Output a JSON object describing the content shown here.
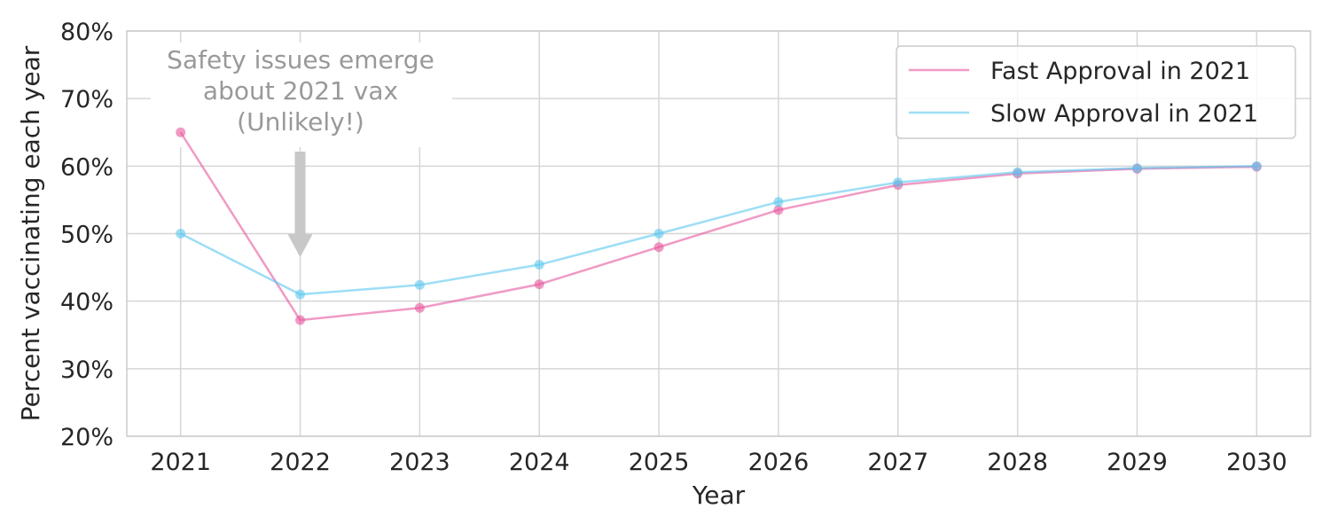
{
  "chart_data": {
    "type": "line",
    "title": "",
    "xlabel": "Year",
    "ylabel": "Percent vaccinating each year",
    "x": [
      2021,
      2022,
      2023,
      2024,
      2025,
      2026,
      2027,
      2028,
      2029,
      2030
    ],
    "x_tick_labels": [
      "2021",
      "2022",
      "2023",
      "2024",
      "2025",
      "2026",
      "2027",
      "2028",
      "2029",
      "2030"
    ],
    "ylim": [
      20,
      80
    ],
    "y_ticks": [
      20,
      30,
      40,
      50,
      60,
      70,
      80
    ],
    "y_tick_labels": [
      "20%",
      "30%",
      "40%",
      "50%",
      "60%",
      "70%",
      "80%"
    ],
    "grid": true,
    "legend_position": "top-right",
    "series": [
      {
        "name": "Fast Approval in 2021",
        "color": "#e8569e",
        "values": [
          65,
          37.2,
          39,
          42.5,
          48,
          53.5,
          57.2,
          58.9,
          59.6,
          59.9
        ]
      },
      {
        "name": "Slow Approval in 2021",
        "color": "#5bc8ee",
        "values": [
          50,
          41,
          42.4,
          45.4,
          50,
          54.7,
          57.6,
          59.1,
          59.7,
          60
        ]
      }
    ],
    "annotations": [
      {
        "lines": [
          "Safety issues emerge",
          "about 2021 vax",
          "(Unlikely!)"
        ],
        "x": 2022,
        "arrow_to_y": 46.5,
        "color": "#c8c8c8",
        "text_color": "#999999"
      }
    ]
  }
}
